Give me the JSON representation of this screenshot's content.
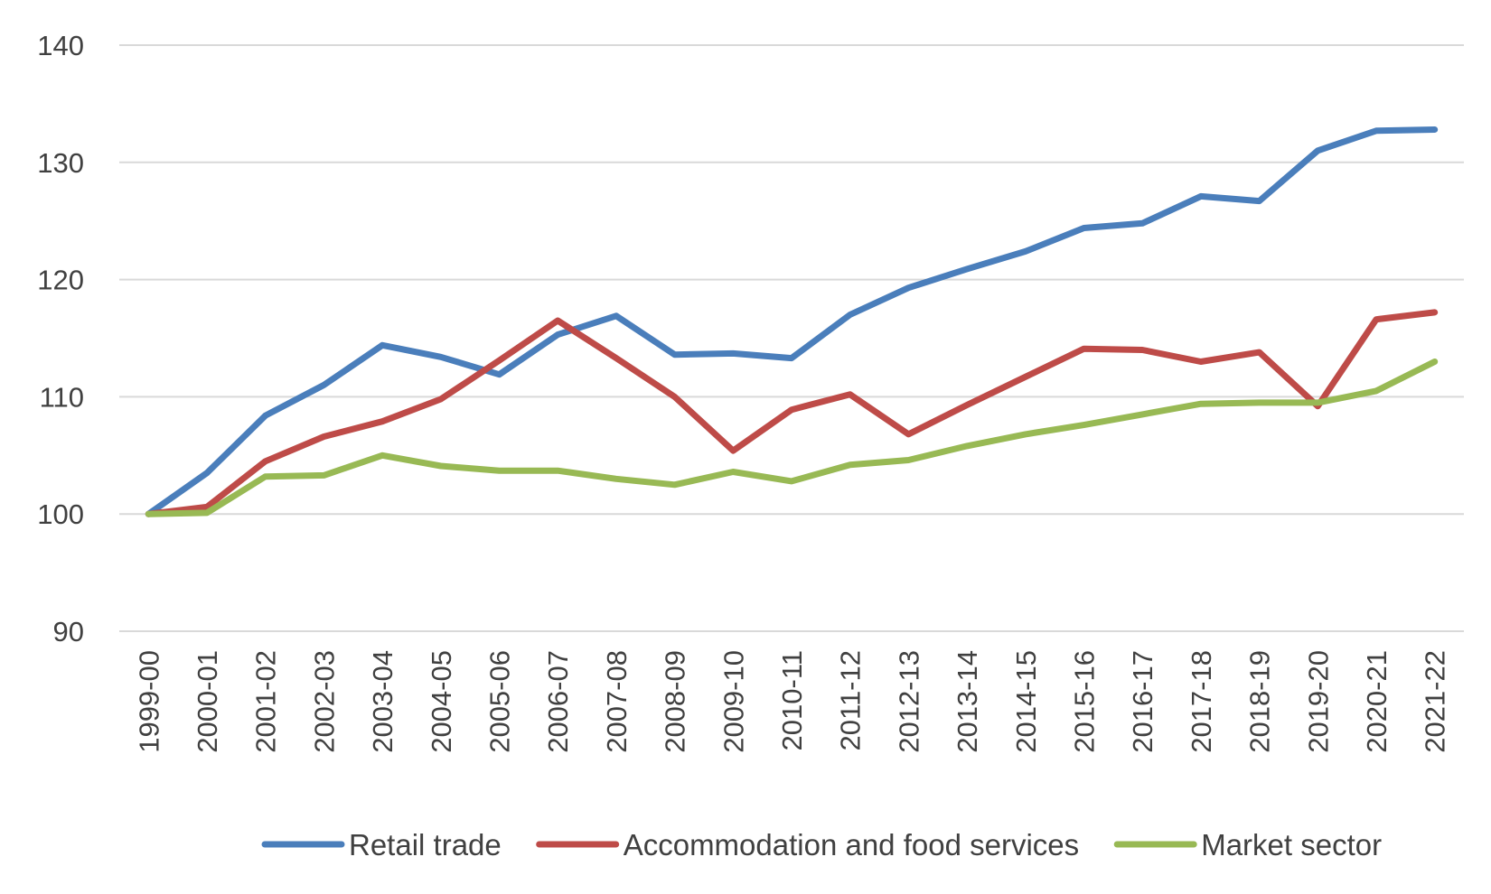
{
  "chart_data": {
    "type": "line",
    "title": "",
    "xlabel": "",
    "ylabel": "",
    "ylim": [
      90,
      140
    ],
    "yticks": [
      90,
      100,
      110,
      120,
      130,
      140
    ],
    "grid": true,
    "legend_position": "bottom",
    "categories": [
      "1999-00",
      "2000-01",
      "2001-02",
      "2002-03",
      "2003-04",
      "2004-05",
      "2005-06",
      "2006-07",
      "2007-08",
      "2008-09",
      "2009-10",
      "2010-11",
      "2011-12",
      "2012-13",
      "2013-14",
      "2014-15",
      "2015-16",
      "2016-17",
      "2017-18",
      "2018-19",
      "2019-20",
      "2020-21",
      "2021-22"
    ],
    "series": [
      {
        "name": "Retail trade",
        "color": "#4a7ebb",
        "values": [
          100,
          103.5,
          108.4,
          111.0,
          114.4,
          113.4,
          111.9,
          115.3,
          116.9,
          113.6,
          113.7,
          113.3,
          117.0,
          119.3,
          120.9,
          122.4,
          124.4,
          124.8,
          127.1,
          126.7,
          131.0,
          132.7,
          132.8
        ]
      },
      {
        "name": "Accommodation and food services",
        "color": "#be4b48",
        "values": [
          100,
          100.6,
          104.5,
          106.6,
          107.9,
          109.8,
          113.1,
          116.5,
          113.3,
          110.0,
          105.4,
          108.9,
          110.2,
          106.8,
          109.3,
          111.7,
          114.1,
          114.0,
          113.0,
          113.8,
          109.2,
          116.6,
          117.2
        ]
      },
      {
        "name": "Market sector",
        "color": "#98b954",
        "values": [
          100,
          100.1,
          103.2,
          103.3,
          105.0,
          104.1,
          103.7,
          103.7,
          103.0,
          102.5,
          103.6,
          102.8,
          104.2,
          104.6,
          105.8,
          106.8,
          107.6,
          108.5,
          109.4,
          109.5,
          109.5,
          110.5,
          113.0
        ]
      }
    ]
  }
}
